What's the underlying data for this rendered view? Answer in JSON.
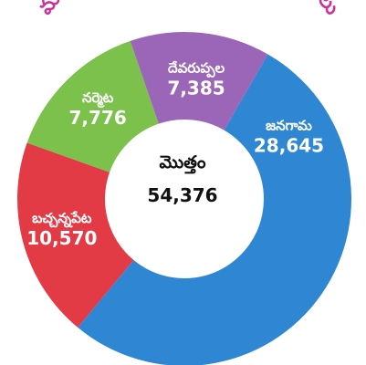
{
  "chart_data": {
    "type": "pie",
    "title": "మండలాల వారీగా పంపిణీ చేసిన పుస్తకాలు",
    "center_label": "మొత్తం",
    "center_value": "54,376",
    "total": 54376,
    "categories": [
      "జనగామ",
      "బచ్చన్నపేట",
      "నర్మెట",
      "దేవరుప్పల"
    ],
    "values": [
      28645,
      10570,
      7776,
      7385
    ],
    "value_labels": [
      "28,645",
      "10,570",
      "7,776",
      "7,385"
    ],
    "colors": [
      "#2f86d2",
      "#e23b46",
      "#7bc14b",
      "#9c66b8"
    ],
    "legend": "none"
  }
}
